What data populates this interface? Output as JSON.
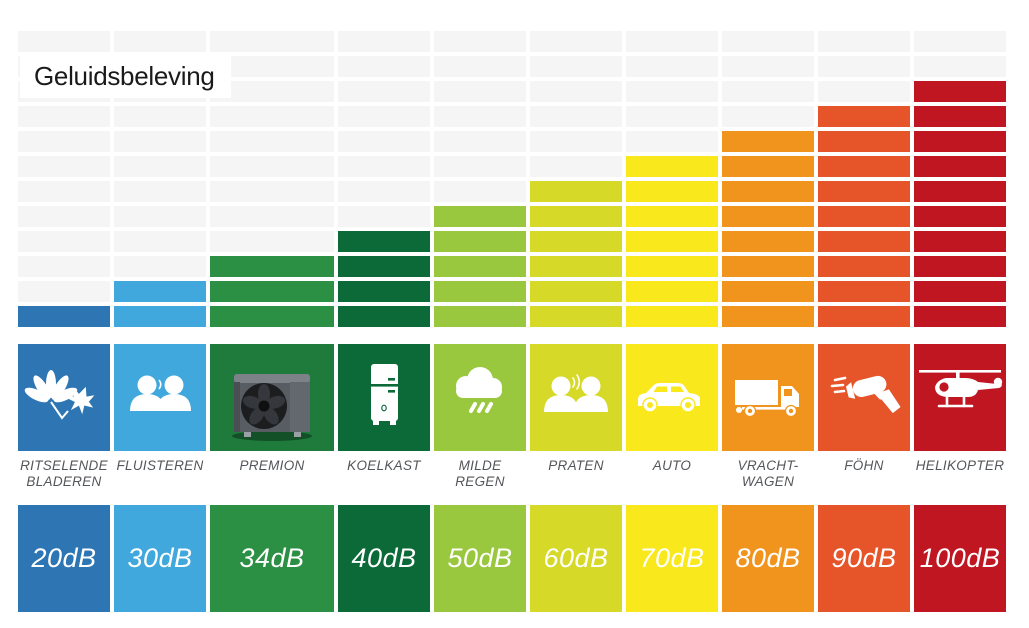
{
  "title": "Geluidsbeleving",
  "grid": {
    "rows": 12,
    "empty_color": "#f5f5f5"
  },
  "columns": [
    {
      "id": "ritselende-bladeren",
      "label_lines": [
        "RITSELENDE",
        "BLADEREN"
      ],
      "db": "20dB",
      "blocks": 1,
      "color": "#2e75b4",
      "icon": "leaves-icon"
    },
    {
      "id": "fluisteren",
      "label_lines": [
        "FLUISTEREN"
      ],
      "db": "30dB",
      "blocks": 2,
      "color": "#40a8dc",
      "icon": "whisper-people-icon"
    },
    {
      "id": "premion",
      "label_lines": [
        "PREMION"
      ],
      "db": "34dB",
      "blocks": 3,
      "color": "#2b9044",
      "tile_color": "#1e7b3c",
      "icon": "heat-pump-image",
      "wide": true
    },
    {
      "id": "koelkast",
      "label_lines": [
        "KOELKAST"
      ],
      "db": "40dB",
      "blocks": 4,
      "color": "#0c6a38",
      "icon": "fridge-icon"
    },
    {
      "id": "milde-regen",
      "label_lines": [
        "MILDE",
        "REGEN"
      ],
      "db": "50dB",
      "blocks": 5,
      "color": "#99c73d",
      "icon": "rain-cloud-icon"
    },
    {
      "id": "praten",
      "label_lines": [
        "PRATEN"
      ],
      "db": "60dB",
      "blocks": 6,
      "color": "#d7d928",
      "icon": "talking-people-icon"
    },
    {
      "id": "auto",
      "label_lines": [
        "AUTO"
      ],
      "db": "70dB",
      "blocks": 7,
      "color": "#f9e81c",
      "icon": "car-icon"
    },
    {
      "id": "vracht-wagen",
      "label_lines": [
        "VRACHT-",
        "WAGEN"
      ],
      "db": "80dB",
      "blocks": 8,
      "color": "#f1941e",
      "icon": "truck-icon"
    },
    {
      "id": "fohn",
      "label_lines": [
        "FÖHN"
      ],
      "db": "90dB",
      "blocks": 9,
      "color": "#e65529",
      "icon": "hair-dryer-icon"
    },
    {
      "id": "helikopter",
      "label_lines": [
        "HELIKOPTER"
      ],
      "db": "100dB",
      "blocks": 10,
      "color": "#c01622",
      "icon": "helicopter-icon"
    }
  ],
  "chart_data": {
    "type": "bar",
    "title": "Geluidsbeleving",
    "categories": [
      "RITSELENDE BLADEREN",
      "FLUISTEREN",
      "PREMION",
      "KOELKAST",
      "MILDE REGEN",
      "PRATEN",
      "AUTO",
      "VRACHT-WAGEN",
      "FÖHN",
      "HELIKOPTER"
    ],
    "series": [
      {
        "name": "dB",
        "values": [
          20,
          30,
          34,
          40,
          50,
          60,
          70,
          80,
          90,
          100
        ]
      },
      {
        "name": "blocks",
        "values": [
          1,
          2,
          3,
          4,
          5,
          6,
          7,
          8,
          9,
          10
        ]
      }
    ],
    "value_labels": [
      "20dB",
      "30dB",
      "34dB",
      "40dB",
      "50dB",
      "60dB",
      "70dB",
      "80dB",
      "90dB",
      "100dB"
    ],
    "bar_colors": [
      "#2e75b4",
      "#40a8dc",
      "#2b9044",
      "#0c6a38",
      "#99c73d",
      "#d7d928",
      "#f9e81c",
      "#f1941e",
      "#e65529",
      "#c01622"
    ],
    "grid_rows_total": 12,
    "grid_color": "#f5f5f5",
    "legend": "none",
    "ylim": [
      0,
      12
    ]
  }
}
